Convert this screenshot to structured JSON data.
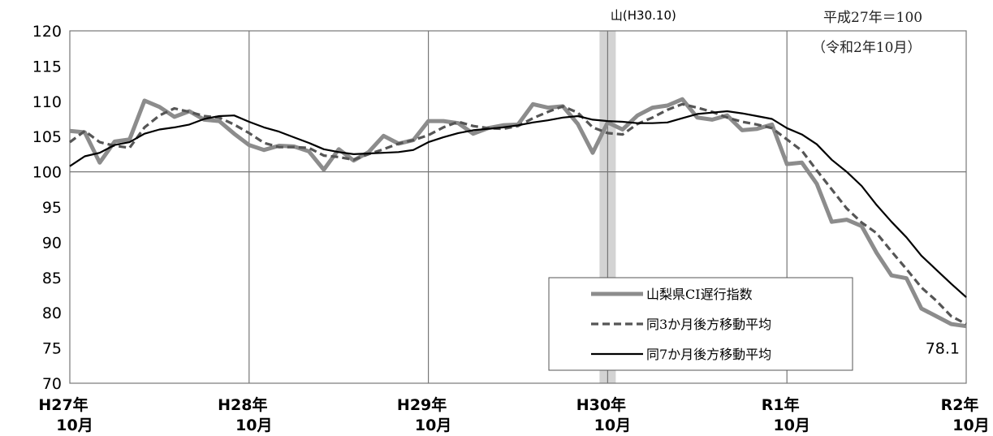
{
  "chart_data": {
    "type": "line",
    "ylim": [
      70,
      120
    ],
    "yticks": [
      70,
      75,
      80,
      85,
      90,
      95,
      100,
      105,
      110,
      115,
      120
    ],
    "xlim": [
      0,
      60
    ],
    "xticks": [
      {
        "x": 0,
        "line1": "H27年",
        "line2": "10月"
      },
      {
        "x": 12,
        "line1": "H28年",
        "line2": "10月"
      },
      {
        "x": 24,
        "line1": "H29年",
        "line2": "10月"
      },
      {
        "x": 36,
        "line1": "H30年",
        "line2": "10月"
      },
      {
        "x": 48,
        "line1": "R1年",
        "line2": "10月"
      },
      {
        "x": 60,
        "line1": "R2年",
        "line2": "10月"
      }
    ],
    "base_note": "平成27年＝100",
    "period_note": "（令和2年10月）",
    "peak": {
      "x": 36,
      "label": "山(H30.10)"
    },
    "grid": true,
    "legend_position": "bottom-right",
    "data_label": {
      "series": 0,
      "x": 60,
      "text": "78.1"
    },
    "series": [
      {
        "name": "山梨県CI遅行指数",
        "color": "#8c8c8c",
        "style": "solid-thick",
        "values": [
          105.8,
          105.6,
          101.3,
          104.3,
          104.6,
          110.1,
          109.2,
          107.8,
          108.6,
          107.4,
          107.2,
          105.4,
          103.8,
          103.1,
          103.7,
          103.6,
          102.9,
          100.3,
          103.2,
          101.6,
          102.8,
          105.1,
          104.0,
          104.5,
          107.2,
          107.2,
          106.9,
          105.4,
          106.2,
          106.6,
          106.7,
          109.6,
          109.1,
          109.3,
          106.8,
          102.7,
          107.0,
          106.0,
          108.0,
          109.1,
          109.4,
          110.3,
          107.7,
          107.4,
          108.0,
          105.9,
          106.1,
          106.7,
          101.1,
          101.3,
          98.3,
          92.9,
          93.2,
          92.3,
          88.5,
          85.3,
          84.9,
          80.6,
          79.5,
          78.4,
          78.1
        ]
      },
      {
        "name": "同3か月後方移動平均",
        "color": "#555555",
        "style": "dashed",
        "values": [
          104.2,
          105.8,
          104.2,
          103.7,
          103.4,
          106.3,
          108.0,
          109.0,
          108.5,
          107.9,
          107.7,
          106.7,
          105.5,
          104.1,
          103.5,
          103.5,
          103.4,
          102.3,
          102.1,
          101.7,
          102.5,
          103.2,
          104.0,
          104.5,
          105.2,
          106.3,
          107.1,
          106.5,
          106.2,
          106.1,
          106.5,
          107.6,
          108.5,
          109.3,
          108.4,
          106.3,
          105.5,
          105.3,
          106.8,
          107.7,
          108.8,
          109.6,
          109.1,
          108.5,
          107.7,
          107.1,
          106.7,
          106.2,
          104.6,
          103.0,
          100.2,
          97.5,
          94.8,
          92.8,
          91.3,
          88.7,
          86.2,
          83.6,
          81.7,
          79.5,
          78.4
        ]
      },
      {
        "name": "同7か月後方移動平均",
        "color": "#000000",
        "style": "solid",
        "values": [
          100.8,
          102.2,
          102.7,
          103.8,
          104.2,
          105.4,
          106.0,
          106.3,
          106.7,
          107.5,
          107.9,
          108.0,
          107.1,
          106.3,
          105.7,
          104.9,
          104.1,
          103.2,
          102.8,
          102.5,
          102.6,
          102.7,
          102.8,
          103.1,
          104.2,
          104.9,
          105.5,
          105.9,
          106.1,
          106.3,
          106.6,
          107.0,
          107.3,
          107.7,
          107.9,
          107.4,
          107.2,
          107.1,
          106.9,
          106.9,
          107.0,
          107.6,
          108.2,
          108.4,
          108.6,
          108.3,
          107.9,
          107.5,
          106.2,
          105.3,
          103.9,
          101.7,
          100.0,
          98.0,
          95.3,
          92.9,
          90.7,
          88.1,
          86.1,
          84.1,
          82.2
        ]
      }
    ]
  }
}
